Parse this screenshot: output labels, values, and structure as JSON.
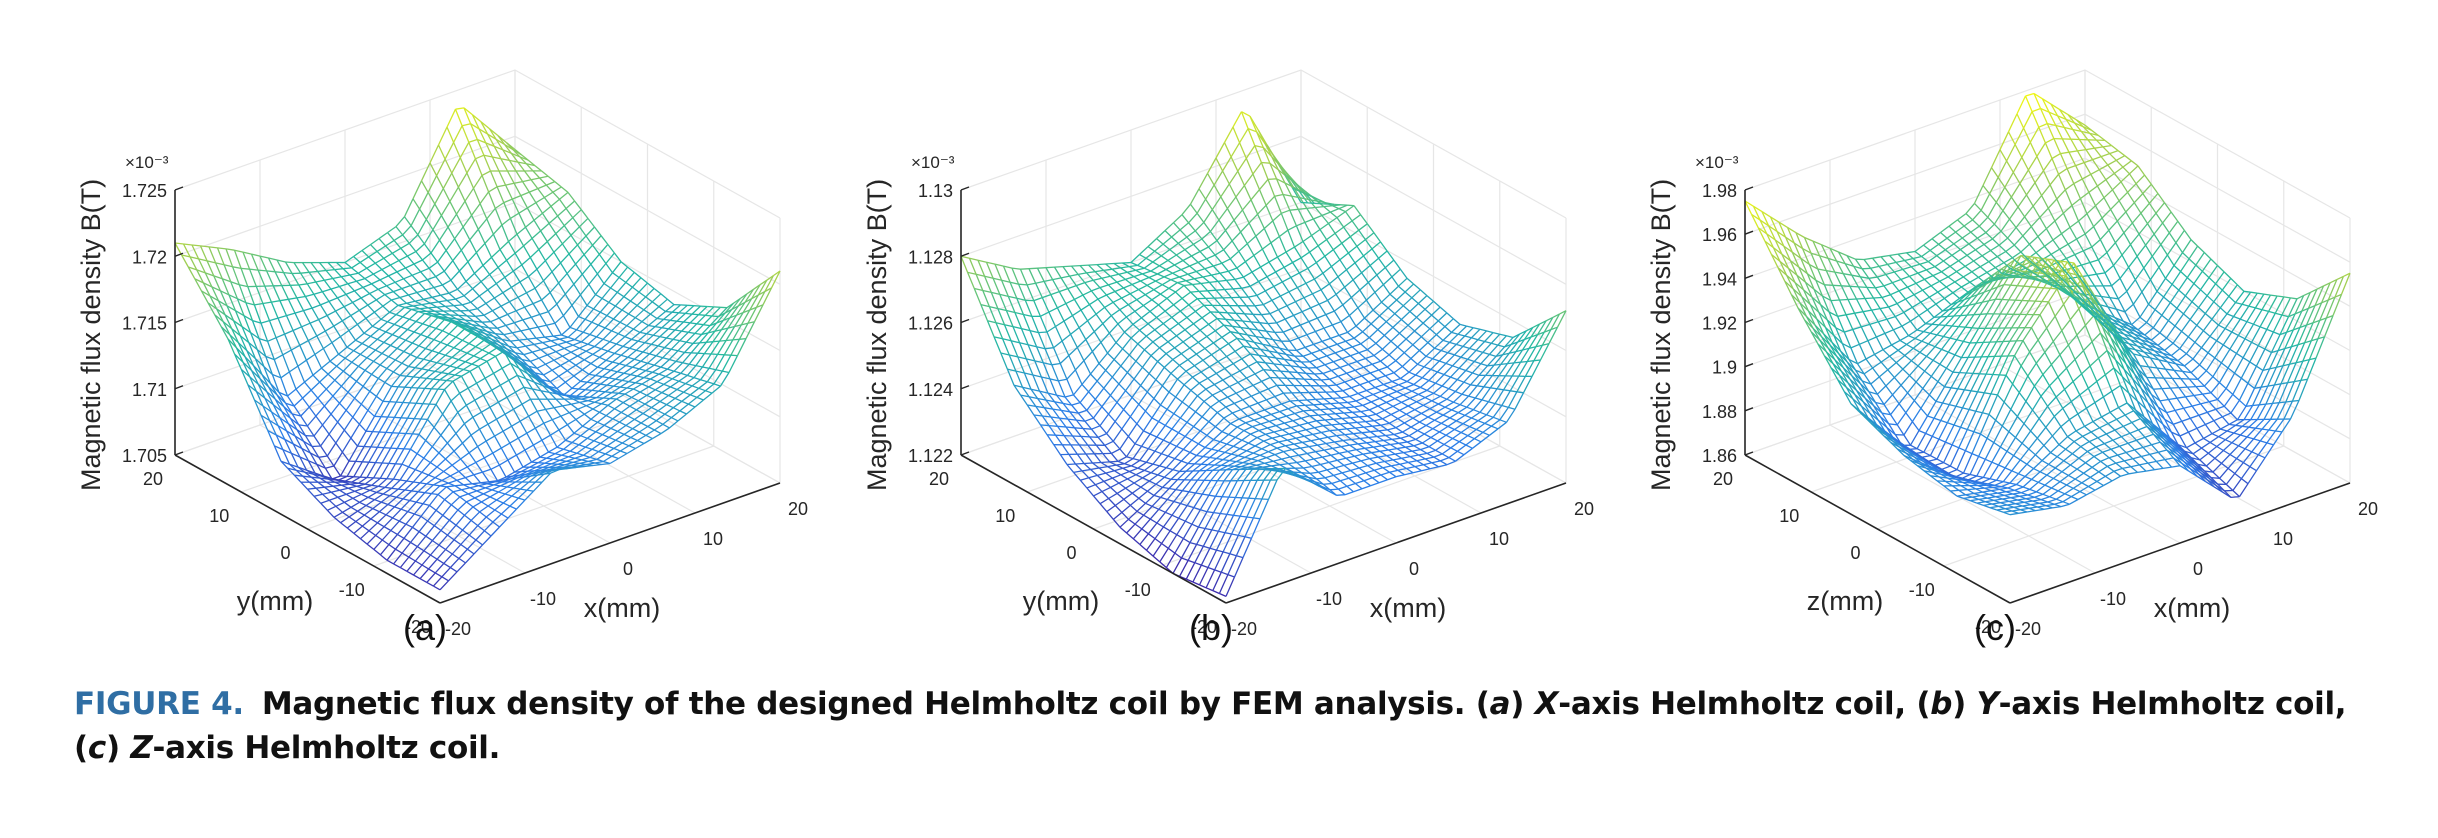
{
  "figure": {
    "caption_label": "FIGURE 4.",
    "caption_segments": [
      {
        "text": "Magnetic flux density of the designed Helmholtz coil by FEM analysis. (",
        "italic": false
      },
      {
        "text": "a",
        "italic": true
      },
      {
        "text": ") ",
        "italic": false
      },
      {
        "text": "X",
        "italic": true
      },
      {
        "text": "-axis Helmholtz coil, (",
        "italic": false
      },
      {
        "text": "b",
        "italic": true
      },
      {
        "text": ") ",
        "italic": false
      },
      {
        "text": "Y",
        "italic": true
      },
      {
        "text": "-axis Helmholtz coil, (",
        "italic": false
      },
      {
        "text": "c",
        "italic": true
      },
      {
        "text": ") ",
        "italic": false
      },
      {
        "text": "Z",
        "italic": true
      },
      {
        "text": "-axis Helmholtz coil.",
        "italic": false
      }
    ]
  },
  "chart_data": [
    {
      "type": "surface",
      "panel_label": "(a)",
      "zlabel": "Magnetic flux density B(T)",
      "xlabel": "x(mm)",
      "ylabel": "y(mm)",
      "exponent": "×10⁻³",
      "zticks": [
        "1.705",
        "1.71",
        "1.715",
        "1.72",
        "1.725"
      ],
      "zlim": [
        1.705,
        1.725
      ],
      "xticks": [
        "-20",
        "-10",
        "0",
        "10",
        "20"
      ],
      "yticks": [
        "20",
        "10",
        "0",
        "-10",
        "-20"
      ],
      "xlim": [
        -20,
        20
      ],
      "ylim": [
        -20,
        20
      ],
      "colormap": [
        "#3e26a8",
        "#2c7fe8",
        "#24b8a2",
        "#9fce54",
        "#f9fb0e"
      ],
      "grid": [
        [
          1.721,
          1.719,
          1.7165,
          1.715,
          1.7165,
          1.724,
          1.719
        ],
        [
          1.716,
          1.71,
          1.712,
          1.714,
          1.7135,
          1.716,
          1.718
        ],
        [
          1.709,
          1.706,
          1.712,
          1.715,
          1.712,
          1.711,
          1.715
        ],
        [
          1.707,
          1.708,
          1.714,
          1.715,
          1.71,
          1.712,
          1.714
        ],
        [
          1.706,
          1.71,
          1.709,
          1.71,
          1.712,
          1.713,
          1.716
        ],
        [
          1.706,
          1.709,
          1.712,
          1.711,
          1.712,
          1.714,
          1.721
        ]
      ]
    },
    {
      "type": "surface",
      "panel_label": "(b)",
      "zlabel": "Magnetic flux density B(T)",
      "xlabel": "x(mm)",
      "ylabel": "y(mm)",
      "exponent": "×10⁻³",
      "zticks": [
        "1.122",
        "1.124",
        "1.126",
        "1.128",
        "1.13"
      ],
      "zlim": [
        1.122,
        1.13
      ],
      "xticks": [
        "-20",
        "-10",
        "0",
        "10",
        "20"
      ],
      "yticks": [
        "20",
        "10",
        "0",
        "-10",
        "-20"
      ],
      "xlim": [
        -20,
        20
      ],
      "ylim": [
        -20,
        20
      ],
      "colormap": [
        "#3e26a8",
        "#2c7fe8",
        "#24b8a2",
        "#9fce54",
        "#f9fb0e"
      ],
      "grid": [
        [
          1.128,
          1.127,
          1.1265,
          1.126,
          1.127,
          1.1295,
          1.126
        ],
        [
          1.125,
          1.124,
          1.1255,
          1.1262,
          1.1258,
          1.1262,
          1.1268
        ],
        [
          1.1235,
          1.123,
          1.125,
          1.1255,
          1.1245,
          1.1245,
          1.1255
        ],
        [
          1.1225,
          1.1235,
          1.1245,
          1.1245,
          1.124,
          1.124,
          1.125
        ],
        [
          1.122,
          1.1245,
          1.1245,
          1.1242,
          1.1238,
          1.1242,
          1.1255
        ],
        [
          1.1222,
          1.1255,
          1.124,
          1.124,
          1.1238,
          1.1245,
          1.1272
        ]
      ]
    },
    {
      "type": "surface",
      "panel_label": "(c)",
      "zlabel": "Magnetic flux density B(T)",
      "xlabel": "x(mm)",
      "ylabel": "z(mm)",
      "exponent": "×10⁻³",
      "zticks": [
        "1.86",
        "1.88",
        "1.9",
        "1.92",
        "1.94",
        "1.96",
        "1.98"
      ],
      "zlim": [
        1.86,
        1.98
      ],
      "xticks": [
        "-20",
        "-10",
        "0",
        "10",
        "20"
      ],
      "yticks": [
        "20",
        "10",
        "0",
        "-10",
        "-20"
      ],
      "xlim": [
        -20,
        20
      ],
      "ylim": [
        -20,
        20
      ],
      "colormap": [
        "#3e26a8",
        "#2c7fe8",
        "#24b8a2",
        "#9fce54",
        "#f9fb0e"
      ],
      "grid": [
        [
          1.975,
          1.95,
          1.93,
          1.925,
          1.935,
          1.98,
          1.955
        ],
        [
          1.94,
          1.905,
          1.91,
          1.92,
          1.925,
          1.935,
          1.95
        ],
        [
          1.91,
          1.88,
          1.915,
          1.95,
          1.92,
          1.9,
          1.93
        ],
        [
          1.9,
          1.88,
          1.93,
          1.96,
          1.91,
          1.895,
          1.92
        ],
        [
          1.895,
          1.89,
          1.905,
          1.91,
          1.88,
          1.885,
          1.93
        ],
        [
          1.9,
          1.895,
          1.9,
          1.895,
          1.87,
          1.9,
          1.955
        ]
      ]
    }
  ]
}
